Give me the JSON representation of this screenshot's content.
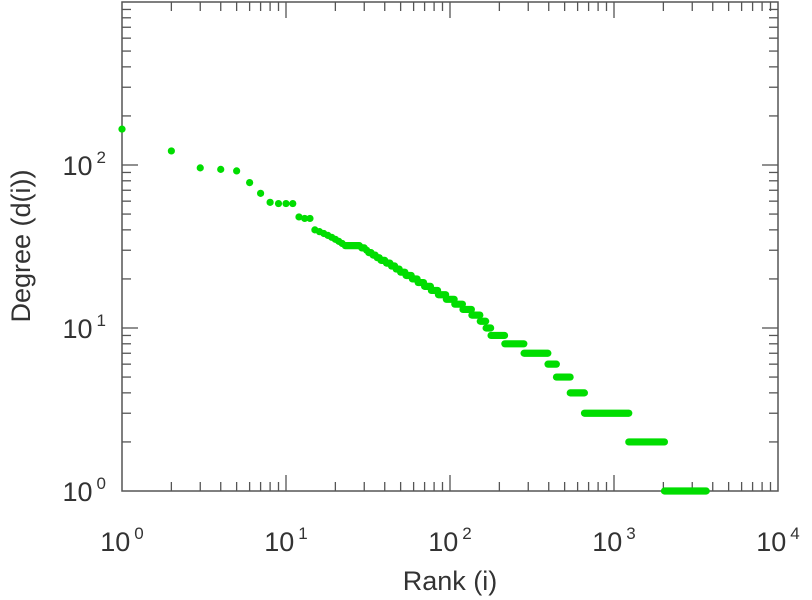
{
  "chart_data": {
    "type": "scatter",
    "title": "",
    "xlabel": "Rank (i)",
    "ylabel": "Degree (d(i))",
    "xscale": "log",
    "yscale": "log",
    "xlim": [
      1,
      10000
    ],
    "ylim": [
      1,
      1000
    ],
    "x_ticks": [
      {
        "base": "10",
        "exp": "0"
      },
      {
        "base": "10",
        "exp": "1"
      },
      {
        "base": "10",
        "exp": "2"
      },
      {
        "base": "10",
        "exp": "3"
      },
      {
        "base": "10",
        "exp": "4"
      }
    ],
    "y_ticks": [
      {
        "base": "10",
        "exp": "0"
      },
      {
        "base": "10",
        "exp": "1"
      },
      {
        "base": "10",
        "exp": "2"
      }
    ],
    "marker_color": "#00dd00",
    "points": [
      [
        1,
        166
      ],
      [
        2,
        122
      ],
      [
        3,
        96
      ],
      [
        4,
        94
      ],
      [
        5,
        92
      ],
      [
        6,
        78
      ],
      [
        7,
        67
      ],
      [
        8,
        59
      ],
      [
        9,
        58
      ],
      [
        10,
        58
      ],
      [
        11,
        58
      ],
      [
        12,
        48
      ],
      [
        13,
        47
      ],
      [
        14,
        47
      ]
    ],
    "runs_degree_rank_start_end": [
      [
        40,
        15,
        15
      ],
      [
        39,
        16,
        16
      ],
      [
        38,
        17,
        17
      ],
      [
        37,
        18,
        18
      ],
      [
        36,
        19,
        19
      ],
      [
        35,
        20,
        20
      ],
      [
        34,
        21,
        21
      ],
      [
        33,
        22,
        22
      ],
      [
        32,
        23,
        28
      ],
      [
        31,
        29,
        30
      ],
      [
        30,
        31,
        31
      ],
      [
        29,
        32,
        33
      ],
      [
        28,
        34,
        35
      ],
      [
        27,
        36,
        37
      ],
      [
        26,
        38,
        40
      ],
      [
        25,
        41,
        43
      ],
      [
        24,
        44,
        46
      ],
      [
        23,
        47,
        49
      ],
      [
        22,
        50,
        53
      ],
      [
        21,
        54,
        58
      ],
      [
        20,
        59,
        63
      ],
      [
        19,
        64,
        69
      ],
      [
        18,
        70,
        76
      ],
      [
        17,
        77,
        84
      ],
      [
        16,
        85,
        94
      ],
      [
        15,
        95,
        106
      ],
      [
        14,
        107,
        119
      ],
      [
        13,
        120,
        135
      ],
      [
        12,
        136,
        152
      ],
      [
        11,
        153,
        165
      ],
      [
        10,
        166,
        177
      ],
      [
        9,
        178,
        215
      ],
      [
        8,
        216,
        282
      ],
      [
        7,
        283,
        395
      ],
      [
        6,
        396,
        445
      ],
      [
        5,
        446,
        540
      ],
      [
        4,
        541,
        660
      ],
      [
        3,
        661,
        1230
      ],
      [
        2,
        1231,
        2030
      ],
      [
        1,
        2031,
        3650
      ]
    ]
  }
}
